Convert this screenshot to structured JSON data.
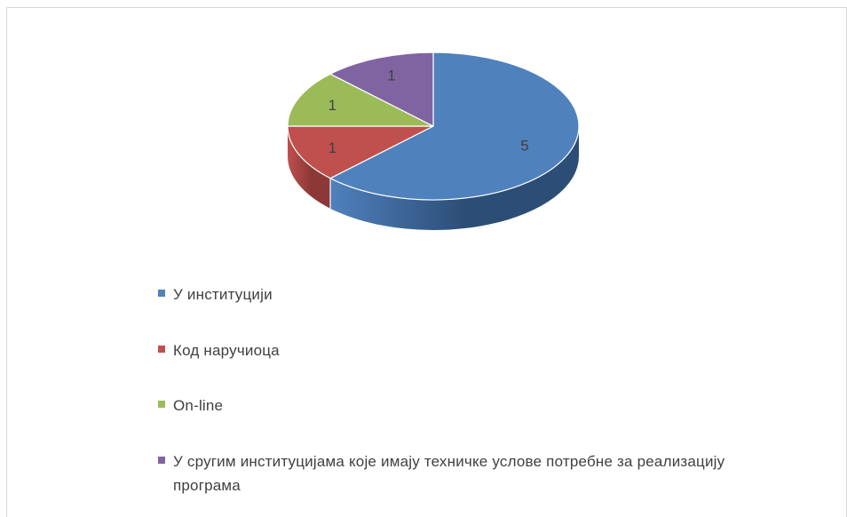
{
  "chart_data": {
    "type": "pie",
    "title": "",
    "categories": [
      "У институцији",
      "Код наручиоца",
      "On-line",
      "У сругим институцијама које имају техничке услове потребне за реализацију програма"
    ],
    "values": [
      5,
      1,
      1,
      1
    ],
    "colors": [
      "#4f81bd",
      "#c0504d",
      "#9bbb59",
      "#8064a2"
    ],
    "side_colors": [
      "#2c4d75",
      "#8c3836",
      "#71893f",
      "#5c4776"
    ],
    "data_labels": [
      "5",
      "1",
      "1",
      "1"
    ],
    "style": "3d",
    "legend_position": "bottom"
  }
}
